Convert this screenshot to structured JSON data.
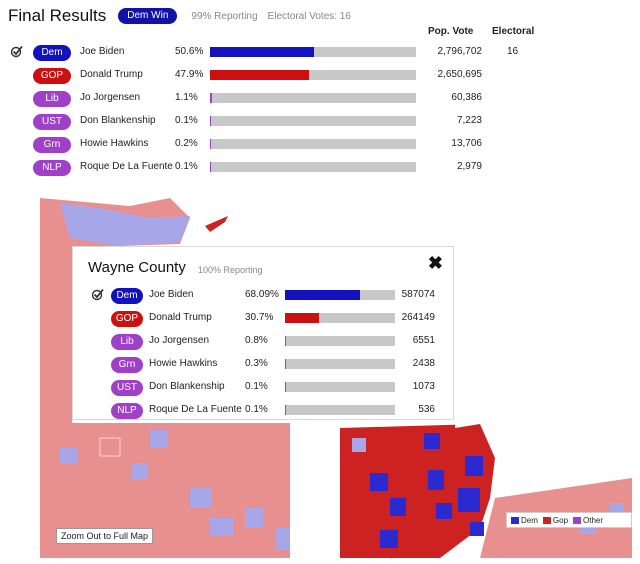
{
  "header": {
    "title": "Final Results",
    "winner_badge": "Dem Win",
    "reporting": "99% Reporting",
    "electoral_votes": "Electoral Votes: 16",
    "col_pop_vote": "Pop. Vote",
    "col_electoral": "Electoral"
  },
  "colors": {
    "Dem": "#1212c0",
    "GOP": "#cc1010",
    "Lib": "#a040c8",
    "UST": "#a040c8",
    "Grn": "#a040c8",
    "NLP": "#a040c8",
    "bar_bg": "#c8c8c8"
  },
  "state_results": [
    {
      "party": "Dem",
      "name": "Joe Biden",
      "pct": "50.6%",
      "share": 0.506,
      "votes": "2,796,702",
      "electoral": "16",
      "winner": true
    },
    {
      "party": "GOP",
      "name": "Donald Trump",
      "pct": "47.9%",
      "share": 0.479,
      "votes": "2,650,695",
      "electoral": "",
      "winner": false
    },
    {
      "party": "Lib",
      "name": "Jo Jorgensen",
      "pct": "1.1%",
      "share": 0.011,
      "votes": "60,386",
      "electoral": "",
      "winner": false
    },
    {
      "party": "UST",
      "name": "Don Blankenship",
      "pct": "0.1%",
      "share": 0.001,
      "votes": "7,223",
      "electoral": "",
      "winner": false
    },
    {
      "party": "Grn",
      "name": "Howie Hawkins",
      "pct": "0.2%",
      "share": 0.002,
      "votes": "13,706",
      "electoral": "",
      "winner": false
    },
    {
      "party": "NLP",
      "name": "Roque De La Fuente",
      "pct": "0.1%",
      "share": 0.001,
      "votes": "2,979",
      "electoral": "",
      "winner": false
    }
  ],
  "county_popup": {
    "title": "Wayne County",
    "reporting": "100% Reporting",
    "close_icon": "✖",
    "results": [
      {
        "party": "Dem",
        "name": "Joe Biden",
        "pct": "68.09%",
        "share": 0.6809,
        "votes": "587074",
        "winner": true
      },
      {
        "party": "GOP",
        "name": "Donald Trump",
        "pct": "30.7%",
        "share": 0.307,
        "votes": "264149",
        "winner": false
      },
      {
        "party": "Lib",
        "name": "Jo Jorgensen",
        "pct": "0.8%",
        "share": 0.008,
        "votes": "6551",
        "winner": false
      },
      {
        "party": "Grn",
        "name": "Howie Hawkins",
        "pct": "0.3%",
        "share": 0.003,
        "votes": "2438",
        "winner": false
      },
      {
        "party": "UST",
        "name": "Don Blankenship",
        "pct": "0.1%",
        "share": 0.001,
        "votes": "1073",
        "winner": false
      },
      {
        "party": "NLP",
        "name": "Roque De La Fuente",
        "pct": "0.1%",
        "share": 0.001,
        "votes": "536",
        "winner": false
      }
    ]
  },
  "map": {
    "zoom_button": "Zoom Out to Full Map",
    "legend": [
      {
        "label": "Dem",
        "color": "#2a2ad0"
      },
      {
        "label": "Gop",
        "color": "#cc2222"
      },
      {
        "label": "Other",
        "color": "#a040c8"
      }
    ]
  }
}
